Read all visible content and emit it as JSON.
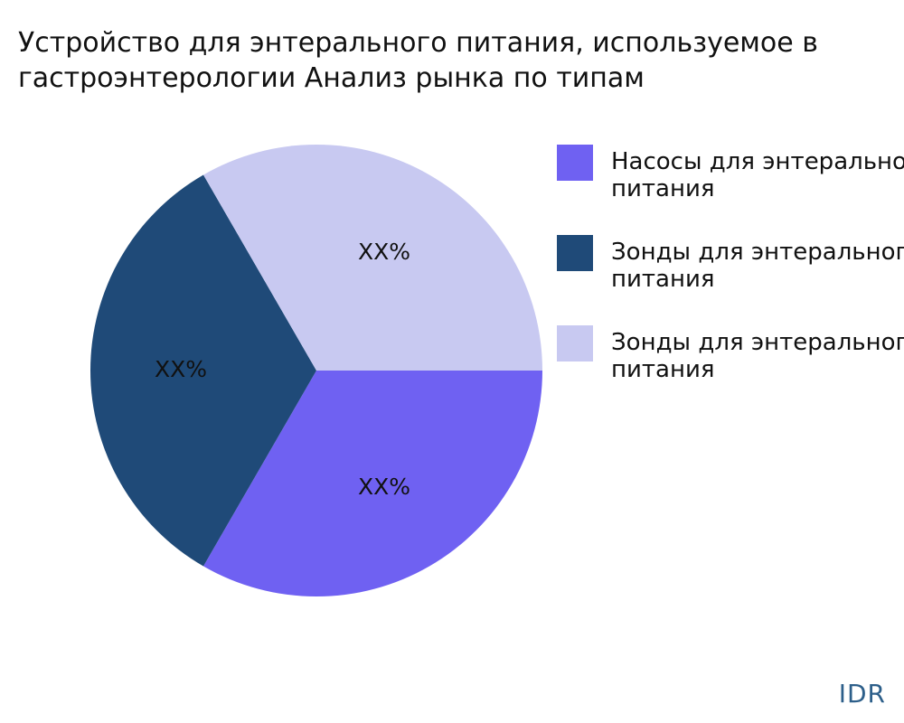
{
  "title_lines": [
    "Устройство для энтерального питания, используемое в",
    "гастроэнтерологии Анализ рынка по типам"
  ],
  "chart_data": {
    "type": "pie",
    "title": "Устройство для энтерального питания, используемое в гастроэнтерологии Анализ рынка по типам",
    "slices": [
      {
        "label": "Насосы для энтерального питания",
        "value": 33.33,
        "display": "XX%",
        "color": "#6f61f2"
      },
      {
        "label": "Зонды для энтерального питания",
        "value": 33.33,
        "display": "XX%",
        "color": "#1f4a78"
      },
      {
        "label": "Зонды для энтерального питания",
        "value": 33.33,
        "display": "XX%",
        "color": "#c8c9f1"
      }
    ],
    "legend_position": "right"
  },
  "brand": "IDR"
}
